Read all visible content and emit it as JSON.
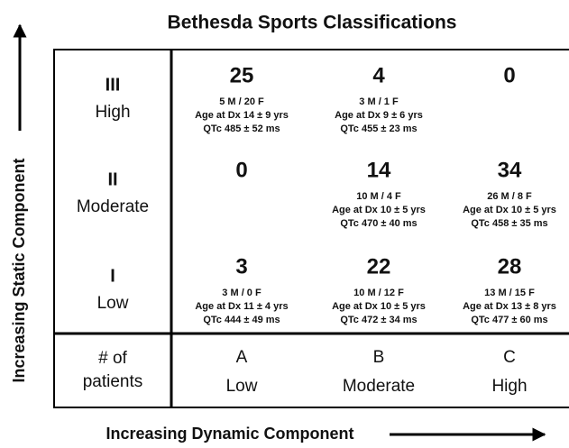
{
  "title": "Bethesda Sports Classifications",
  "y_axis_label": "Increasing Static Component",
  "x_axis_label": "Increasing Dynamic Component",
  "corner": [
    "# of",
    "patients"
  ],
  "columns": [
    {
      "letter": "A",
      "label": "Low"
    },
    {
      "letter": "B",
      "label": "Moderate"
    },
    {
      "letter": "C",
      "label": "High"
    }
  ],
  "rows": [
    {
      "roman": "III",
      "label": "High",
      "cells": [
        {
          "count": "25",
          "sex": "5 M / 20 F",
          "age": "Age at Dx 14 ± 9 yrs",
          "qtc": "QTc 485 ± 52 ms"
        },
        {
          "count": "4",
          "sex": "3 M / 1 F",
          "age": "Age at Dx 9 ± 6 yrs",
          "qtc": "QTc 455 ± 23 ms"
        },
        {
          "count": "0"
        }
      ]
    },
    {
      "roman": "II",
      "label": "Moderate",
      "cells": [
        {
          "count": "0"
        },
        {
          "count": "14",
          "sex": "10 M / 4 F",
          "age": "Age at Dx 10 ± 5 yrs",
          "qtc": "QTc 470 ± 40 ms"
        },
        {
          "count": "34",
          "sex": "26 M / 8 F",
          "age": "Age at Dx 10 ± 5 yrs",
          "qtc": "QTc 458 ± 35 ms"
        }
      ]
    },
    {
      "roman": "I",
      "label": "Low",
      "cells": [
        {
          "count": "3",
          "sex": "3 M / 0 F",
          "age": "Age at Dx 11 ± 4 yrs",
          "qtc": "QTc 444 ± 49 ms"
        },
        {
          "count": "22",
          "sex": "10 M / 12 F",
          "age": "Age at Dx 10 ± 5 yrs",
          "qtc": "QTc 472 ± 34 ms"
        },
        {
          "count": "28",
          "sex": "13 M / 15 F",
          "age": "Age at Dx 13 ± 8 yrs",
          "qtc": "QTc 477 ± 60 ms"
        }
      ]
    }
  ]
}
